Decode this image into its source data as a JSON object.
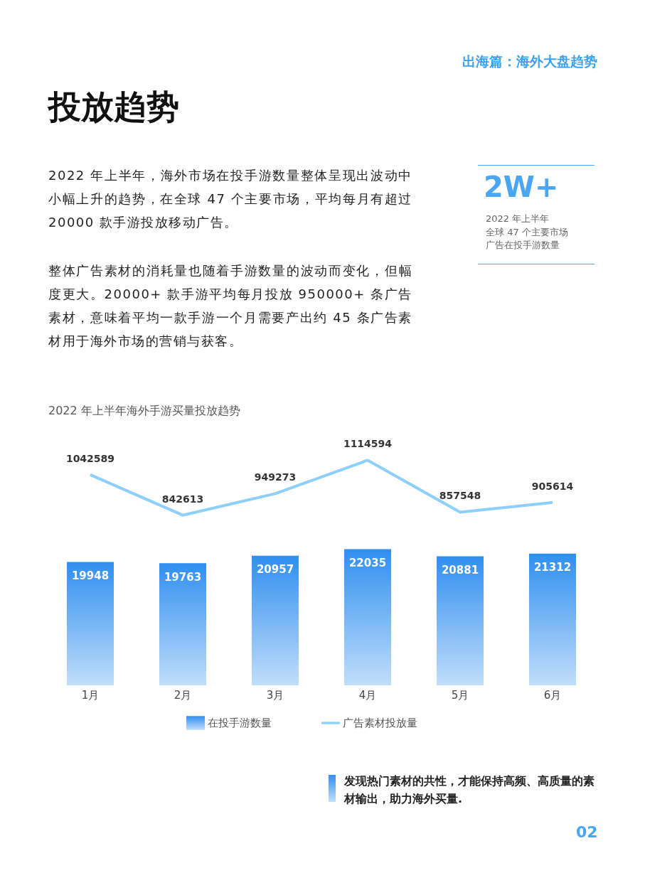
{
  "chart_data": [
    {
      "type": "line",
      "title": "2022 年上半年海外手游买量投放趋势",
      "categories": [
        null,
        null,
        null,
        null,
        null,
        null
      ],
      "series": [
        {
          "name": "广告素材投放量",
          "color": "#8ccffa",
          "values": [
            1042589,
            842613,
            949273,
            1114594,
            857548,
            905614
          ]
        }
      ],
      "data_labels": true,
      "legend": "bottom",
      "marker": "none",
      "annotations": [
        "出海篇：海外大盘趋势",
        "投放趋势",
        "2022 年上半年，海外市场在投手游数量整体呈现出波动中小幅上升的趋势，在全球 47 个主要市场，平均每月有超过 20000 款手游投放移动广告。",
        "整体广告素材的消耗量也随着手游数量的波动而变化，但幅度更大。20000+ 款手游平均每月投放 950000+ 条广告素材，意味着平均一款手游一个月需要产出约 45 条广告素材用于海外市场的营销与获客。",
        "2W+",
        "2022 年上半年",
        "全球 47 个主要市场",
        "广告在投手游数量",
        "发现热门素材的共性，才能保持高频、高质量的素材输出，助力海外买量.",
        "02"
      ]
    },
    {
      "type": "bar",
      "categories": [
        "1月",
        "2月",
        "3月",
        "4月",
        "5月",
        "6月"
      ],
      "series": [
        {
          "name": "在投手游数量",
          "color": "#2f8ff0",
          "values": [
            19948,
            19763,
            20957,
            22035,
            20881,
            21312
          ]
        }
      ],
      "data_labels": true,
      "legend": "bottom"
    }
  ]
}
